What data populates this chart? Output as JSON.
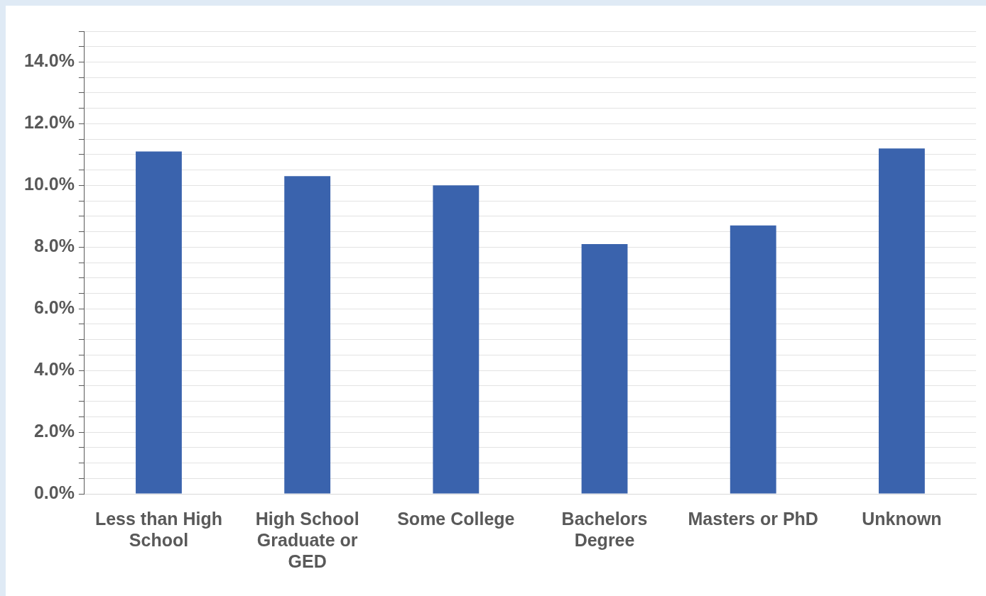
{
  "chart_data": {
    "type": "bar",
    "categories": [
      "Less than High School",
      "High School Graduate or GED",
      "Some College",
      "Bachelors Degree",
      "Masters or PhD",
      "Unknown"
    ],
    "values": [
      11.1,
      10.3,
      10.0,
      8.1,
      8.7,
      11.2
    ],
    "color": "#3a63ad",
    "ylim": [
      0,
      15
    ],
    "yticks": [
      {
        "value": 0,
        "label": "0.0%"
      },
      {
        "value": 0.5,
        "label": null
      },
      {
        "value": 1,
        "label": null
      },
      {
        "value": 1.5,
        "label": null
      },
      {
        "value": 2,
        "label": "2.0%"
      },
      {
        "value": 2.5,
        "label": null
      },
      {
        "value": 3,
        "label": null
      },
      {
        "value": 3.5,
        "label": null
      },
      {
        "value": 4,
        "label": "4.0%"
      },
      {
        "value": 4.5,
        "label": null
      },
      {
        "value": 5,
        "label": null
      },
      {
        "value": 5.5,
        "label": null
      },
      {
        "value": 6,
        "label": "6.0%"
      },
      {
        "value": 6.5,
        "label": null
      },
      {
        "value": 7,
        "label": null
      },
      {
        "value": 7.5,
        "label": null
      },
      {
        "value": 8,
        "label": "8.0%"
      },
      {
        "value": 8.5,
        "label": null
      },
      {
        "value": 9,
        "label": null
      },
      {
        "value": 9.5,
        "label": null
      },
      {
        "value": 10,
        "label": "10.0%"
      },
      {
        "value": 10.5,
        "label": null
      },
      {
        "value": 11,
        "label": null
      },
      {
        "value": 11.5,
        "label": null
      },
      {
        "value": 12,
        "label": "12.0%"
      },
      {
        "value": 12.5,
        "label": null
      },
      {
        "value": 13,
        "label": null
      },
      {
        "value": 13.5,
        "label": null
      },
      {
        "value": 14,
        "label": "14.0%"
      },
      {
        "value": 14.5,
        "label": null
      },
      {
        "value": 15,
        "label": null
      }
    ],
    "grid": "y"
  }
}
